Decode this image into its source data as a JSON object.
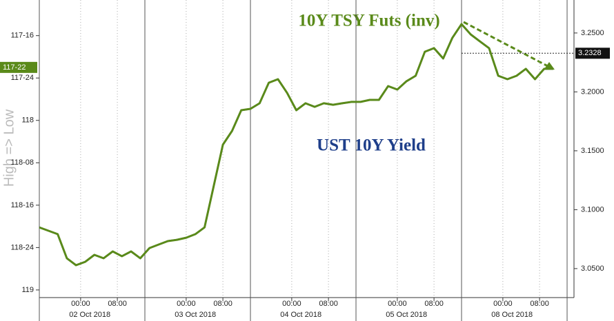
{
  "chart_data": {
    "type": "line",
    "annotations": [
      "10Y TSY Futs (inv)",
      "UST 10Y Yield"
    ],
    "ylabel": "High => Low",
    "x": [
      0,
      2,
      4,
      6,
      8,
      10,
      12,
      14,
      16,
      18,
      20,
      22,
      24,
      26,
      28,
      30,
      32,
      34,
      36,
      38,
      40,
      42,
      44,
      46,
      48,
      50,
      52,
      54,
      56,
      58,
      60,
      62,
      64,
      66,
      68,
      70,
      72,
      74,
      76,
      78,
      80,
      82,
      84,
      86,
      88,
      90,
      92,
      94,
      96,
      98,
      100,
      102,
      104,
      106,
      108,
      110,
      112
    ],
    "xlim": [
      0,
      116.5
    ],
    "xticks": [
      {
        "value": 9,
        "label": "00:00"
      },
      {
        "value": 17,
        "label": "08:00"
      },
      {
        "value": 32,
        "label": "00:00"
      },
      {
        "value": 40,
        "label": "08:00"
      },
      {
        "value": 55,
        "label": "00:00"
      },
      {
        "value": 63,
        "label": "08:00"
      },
      {
        "value": 78,
        "label": "00:00"
      },
      {
        "value": 86,
        "label": "08:00"
      },
      {
        "value": 101,
        "label": "00:00"
      },
      {
        "value": 109,
        "label": "08:00"
      }
    ],
    "days": [
      {
        "value": 11,
        "label": "02 Oct 2018"
      },
      {
        "value": 34,
        "label": "03 Oct 2018"
      },
      {
        "value": 57,
        "label": "04 Oct 2018"
      },
      {
        "value": 80,
        "label": "05 Oct 2018"
      },
      {
        "value": 103,
        "label": "08 Oct 2018"
      }
    ],
    "xbreaks": [
      0,
      23,
      46,
      69,
      92,
      115
    ],
    "ylim": [
      117.29,
      119.045
    ],
    "y_inverted": true,
    "yticks": [
      {
        "value": 117.5,
        "label": "117-16"
      },
      {
        "value": 117.75,
        "label": "117-24"
      },
      118,
      {
        "value": 118.25,
        "label": "118-08"
      },
      {
        "value": 118.5,
        "label": "118-16"
      },
      {
        "value": 118.75,
        "label": "118-24"
      },
      119
    ],
    "y2lim": [
      3.0254,
      3.278
    ],
    "y2ticks": [
      {
        "value": 3.25,
        "label": "3.2500"
      },
      {
        "value": 3.2,
        "label": "3.2000"
      },
      {
        "value": 3.15,
        "label": "3.1500"
      },
      {
        "value": 3.1,
        "label": "3.1000"
      },
      {
        "value": 3.05,
        "label": "3.0500"
      }
    ],
    "grid": true,
    "series": [
      {
        "name": "UST 10Y Yield",
        "color": "#1f3f8a",
        "axis": "y2",
        "current": {
          "value": 3.2328,
          "label": "3.2328"
        },
        "values": [
          3.085,
          3.0821,
          3.0792,
          3.0587,
          3.0529,
          3.0558,
          3.0617,
          3.0587,
          3.0646,
          3.0605,
          3.0646,
          3.0587,
          3.0675,
          3.0704,
          3.0734,
          3.0745,
          3.0763,
          3.0792,
          3.085,
          3.1201,
          3.1552,
          3.1669,
          3.1844,
          3.1856,
          3.1903,
          3.2078,
          3.2108,
          3.1991,
          3.1844,
          3.1903,
          3.1874,
          3.1903,
          3.1891,
          3.1903,
          3.1915,
          3.1915,
          3.1932,
          3.1932,
          3.2049,
          3.202,
          3.209,
          3.2137,
          3.2341,
          3.2371,
          3.2283,
          3.2458,
          3.2575,
          3.2488,
          3.2429,
          3.2371,
          3.2137,
          3.2108,
          3.2137,
          3.2195,
          3.2108,
          3.2195,
          3.2195
        ]
      },
      {
        "name": "10Y TSY Futs (inv)",
        "color": "#5a8a1a",
        "axis": "y",
        "current": {
          "value": 117.6875,
          "label": "117-22"
        },
        "values": [
          118.631,
          118.651,
          118.671,
          118.813,
          118.854,
          118.834,
          118.793,
          118.813,
          118.773,
          118.801,
          118.773,
          118.813,
          118.753,
          118.732,
          118.712,
          118.704,
          118.692,
          118.671,
          118.631,
          118.387,
          118.143,
          118.062,
          117.94,
          117.932,
          117.899,
          117.778,
          117.757,
          117.838,
          117.94,
          117.899,
          117.92,
          117.899,
          117.908,
          117.899,
          117.891,
          117.891,
          117.879,
          117.879,
          117.798,
          117.818,
          117.769,
          117.737,
          117.595,
          117.574,
          117.635,
          117.513,
          117.432,
          117.493,
          117.534,
          117.574,
          117.737,
          117.757,
          117.737,
          117.696,
          117.757,
          117.696,
          117.696
        ]
      }
    ]
  }
}
